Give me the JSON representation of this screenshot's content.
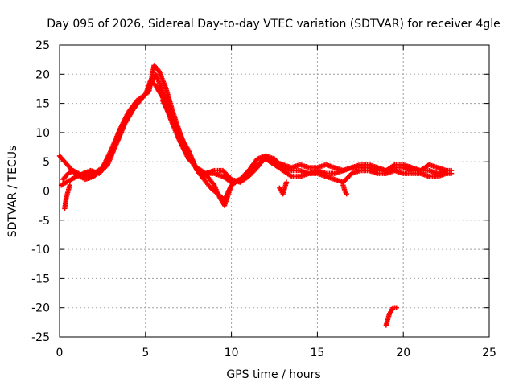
{
  "chart_data": {
    "type": "scatter",
    "title": "Day 095 of 2026, Sidereal Day-to-day VTEC variation (SDTVAR) for receiver 4gle",
    "xlabel": "GPS time / hours",
    "ylabel": "SDTVAR / TECUs",
    "xlim": [
      0,
      25
    ],
    "ylim": [
      -25,
      25
    ],
    "xticks": [
      0,
      5,
      10,
      15,
      20,
      25
    ],
    "yticks": [
      -25,
      -20,
      -15,
      -10,
      -5,
      0,
      5,
      10,
      15,
      20,
      25
    ],
    "grid": true,
    "marker": "plus",
    "color": "#ff0000",
    "series": [
      {
        "name": "trace-1",
        "x": [
          0.0,
          0.3,
          0.6,
          0.9,
          1.2,
          1.5,
          2.0,
          2.5,
          3.0,
          3.5,
          4.0,
          4.5,
          5.0,
          5.3,
          5.6,
          6.0,
          6.5,
          7.0,
          7.5,
          8.0,
          8.5,
          9.0,
          9.5,
          10.0,
          10.5,
          11.0,
          11.5,
          12.0,
          12.5,
          13.0,
          13.5,
          14.0,
          14.5,
          15.0,
          15.5,
          16.0,
          16.5,
          17.0,
          17.5,
          18.0,
          18.5,
          19.0,
          19.5,
          20.0,
          20.5,
          21.0,
          21.5,
          22.0,
          22.5,
          22.8
        ],
        "y": [
          6.0,
          5.0,
          4.0,
          3.0,
          2.5,
          2.0,
          2.5,
          4.0,
          7.0,
          10.5,
          13.5,
          15.5,
          16.5,
          19.0,
          18.0,
          16.0,
          12.0,
          8.5,
          5.5,
          4.0,
          3.0,
          3.0,
          2.5,
          1.5,
          2.0,
          3.5,
          5.5,
          6.0,
          5.0,
          4.5,
          4.0,
          4.5,
          4.0,
          4.0,
          4.5,
          4.0,
          3.5,
          4.0,
          4.5,
          4.5,
          4.0,
          3.5,
          4.0,
          4.0,
          3.5,
          3.5,
          3.5,
          3.0,
          3.5,
          3.5
        ]
      },
      {
        "name": "trace-2",
        "x": [
          0.1,
          0.4,
          0.7,
          1.0,
          1.4,
          1.8,
          2.3,
          2.8,
          3.3,
          3.8,
          4.3,
          4.8,
          5.2,
          5.5,
          5.8,
          6.2,
          6.6,
          7.0,
          7.4,
          7.8,
          8.2,
          8.6,
          9.0,
          9.3,
          9.6,
          10.0,
          10.5,
          11.0,
          11.5,
          12.0,
          12.5,
          13.0,
          13.5,
          14.0,
          14.5,
          15.0,
          15.5,
          16.0,
          16.5,
          17.0,
          17.5,
          18.0,
          18.5,
          19.0,
          19.5,
          20.0,
          20.5,
          21.0,
          21.5,
          22.0,
          22.5,
          22.8
        ],
        "y": [
          1.0,
          1.5,
          2.0,
          2.5,
          3.0,
          3.5,
          3.0,
          4.5,
          8.0,
          11.5,
          14.0,
          16.0,
          17.0,
          21.5,
          20.5,
          17.5,
          13.5,
          10.0,
          7.0,
          4.5,
          3.0,
          2.5,
          1.0,
          -1.0,
          -2.5,
          1.0,
          2.0,
          3.0,
          4.5,
          5.5,
          4.5,
          3.5,
          2.5,
          2.5,
          3.0,
          3.0,
          2.5,
          2.0,
          1.5,
          3.0,
          3.5,
          3.5,
          3.0,
          3.0,
          3.5,
          3.0,
          3.0,
          3.0,
          2.5,
          2.5,
          3.0,
          3.0
        ]
      },
      {
        "name": "trace-3",
        "x": [
          0.2,
          0.5,
          0.8,
          1.1,
          1.5,
          2.0,
          2.5,
          3.0,
          3.5,
          4.0,
          4.5,
          5.0,
          5.6,
          6.0,
          6.5,
          7.0,
          7.5,
          8.0,
          8.5,
          9.0,
          9.5,
          10.0,
          10.5,
          11.0,
          11.5,
          12.0,
          12.5,
          13.0,
          13.5,
          14.0,
          14.5,
          15.0,
          15.5,
          16.0,
          16.5,
          17.0,
          17.5,
          18.0,
          18.5,
          19.0,
          19.5,
          20.0,
          20.5,
          21.0,
          21.5,
          22.0,
          22.5
        ],
        "y": [
          2.0,
          3.0,
          3.5,
          3.0,
          2.5,
          3.0,
          4.0,
          6.5,
          10.0,
          13.0,
          15.0,
          16.5,
          20.0,
          17.0,
          13.0,
          9.5,
          7.0,
          3.5,
          3.0,
          3.5,
          3.5,
          2.0,
          1.5,
          2.5,
          4.0,
          6.0,
          5.5,
          4.0,
          3.5,
          3.5,
          3.0,
          3.5,
          3.0,
          3.0,
          3.5,
          4.0,
          4.0,
          4.0,
          3.5,
          3.5,
          4.5,
          4.5,
          4.0,
          3.5,
          4.5,
          4.0,
          3.5
        ]
      },
      {
        "name": "trace-4",
        "x": [
          6.0,
          6.4,
          6.8,
          7.2,
          7.6,
          8.0,
          8.4,
          8.8,
          9.2,
          9.6,
          10.0
        ],
        "y": [
          15.5,
          13.0,
          10.5,
          8.0,
          6.0,
          3.5,
          2.0,
          0.5,
          -0.5,
          -1.5,
          1.0
        ]
      },
      {
        "name": "trace-5",
        "x": [
          0.3,
          0.35,
          0.4,
          0.5,
          0.6
        ],
        "y": [
          -3.0,
          -2.0,
          -1.0,
          0.0,
          1.0
        ]
      },
      {
        "name": "trace-6",
        "x": [
          12.8,
          13.0,
          13.2
        ],
        "y": [
          0.5,
          -0.5,
          1.5
        ]
      },
      {
        "name": "trace-7",
        "x": [
          16.5,
          16.6,
          16.7
        ],
        "y": [
          1.0,
          0.0,
          -0.5
        ]
      },
      {
        "name": "trace-8",
        "x": [
          19.0,
          19.1,
          19.2,
          19.3,
          19.4,
          19.5,
          19.6
        ],
        "y": [
          -23.0,
          -22.0,
          -21.0,
          -20.5,
          -20.0,
          -20.0,
          -20.0
        ]
      }
    ]
  }
}
